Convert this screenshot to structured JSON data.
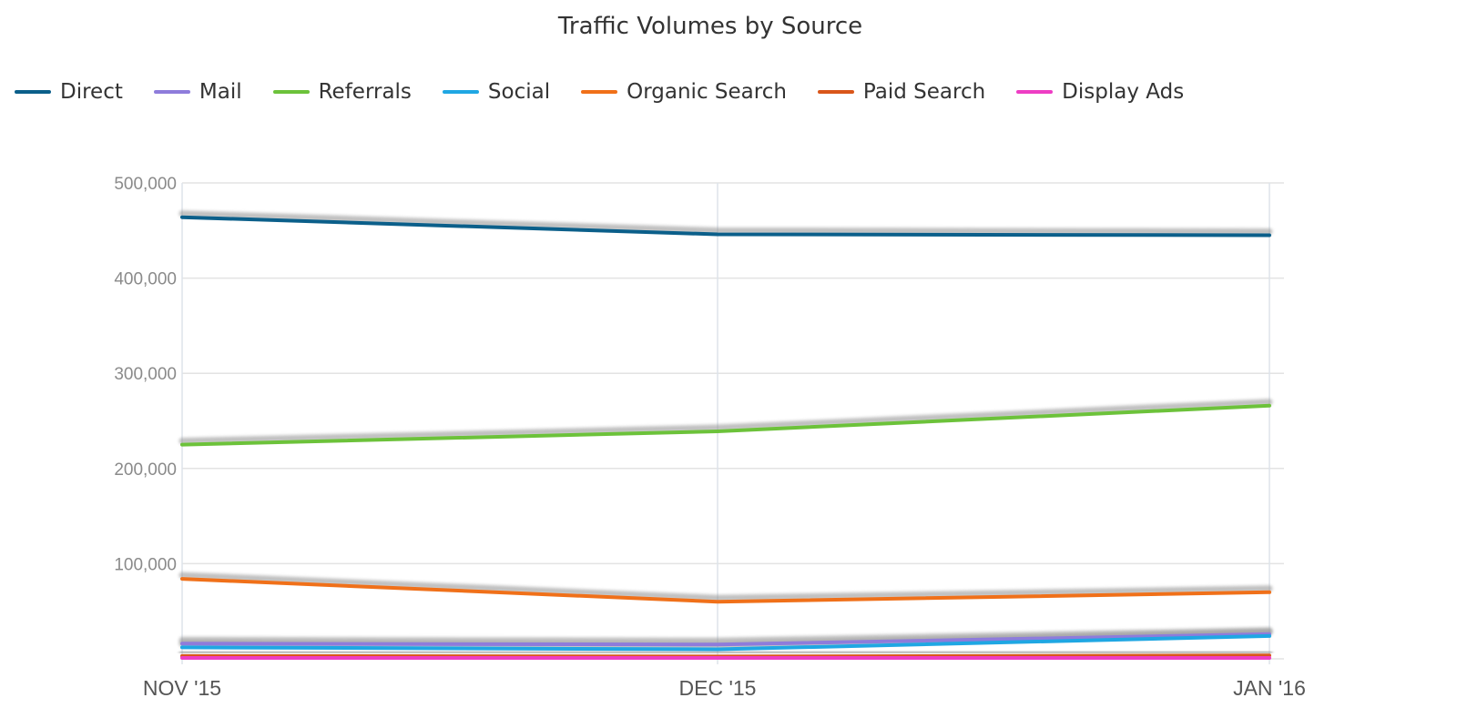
{
  "chart_data": {
    "type": "line",
    "title": "Traffic Volumes by Source",
    "categories": [
      "NOV '15",
      "DEC '15",
      "JAN '16"
    ],
    "ylim": [
      0,
      500000
    ],
    "yticks": [
      "500,000",
      "400,000",
      "300,000",
      "200,000",
      "100,000"
    ],
    "ytick_values": [
      500000,
      400000,
      300000,
      200000,
      100000
    ],
    "grid": true,
    "legend_position": "top-left",
    "series": [
      {
        "name": "Direct",
        "color": "#0b5f8a",
        "values": [
          464000,
          446000,
          445000
        ]
      },
      {
        "name": "Mail",
        "color": "#8e7cdb",
        "values": [
          16000,
          15000,
          26000
        ]
      },
      {
        "name": "Referrals",
        "color": "#6cc23a",
        "values": [
          225000,
          239000,
          266000
        ]
      },
      {
        "name": "Social",
        "color": "#1fa7e3",
        "values": [
          12000,
          10000,
          24000
        ]
      },
      {
        "name": "Organic Search",
        "color": "#f07019",
        "values": [
          84000,
          60000,
          70000
        ]
      },
      {
        "name": "Paid Search",
        "color": "#d9561a",
        "values": [
          3000,
          2500,
          3500
        ]
      },
      {
        "name": "Display Ads",
        "color": "#ee3dc4",
        "values": [
          1000,
          1000,
          1000
        ]
      }
    ]
  }
}
